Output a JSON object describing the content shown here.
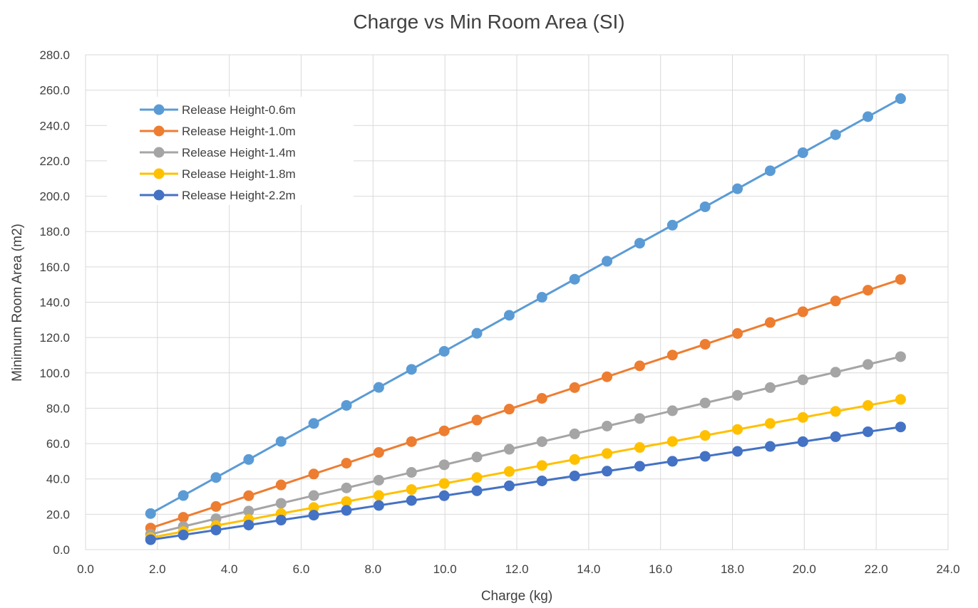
{
  "chart_data": {
    "type": "line",
    "title": "Charge vs Min Room Area  (SI)",
    "xlabel": "Charge (kg)",
    "ylabel": "Minimum Room Area (m2)",
    "xlim": [
      0,
      24
    ],
    "ylim": [
      0,
      280
    ],
    "x_ticks": [
      "0.0",
      "2.0",
      "4.0",
      "6.0",
      "8.0",
      "10.0",
      "12.0",
      "14.0",
      "16.0",
      "18.0",
      "20.0",
      "22.0",
      "24.0"
    ],
    "y_ticks": [
      "0.0",
      "20.0",
      "40.0",
      "60.0",
      "80.0",
      "100.0",
      "120.0",
      "140.0",
      "160.0",
      "180.0",
      "200.0",
      "220.0",
      "240.0",
      "260.0",
      "280.0"
    ],
    "grid": true,
    "legend_position": "top-left",
    "x": [
      1.81,
      2.72,
      3.63,
      4.54,
      5.44,
      6.35,
      7.26,
      8.16,
      9.07,
      9.98,
      10.89,
      11.79,
      12.7,
      13.61,
      14.51,
      15.42,
      16.33,
      17.24,
      18.14,
      19.05,
      19.96,
      20.87,
      21.77,
      22.68
    ],
    "series": [
      {
        "name": "Release Height-0.6m",
        "color": "#5B9BD5",
        "values": [
          20.4,
          30.6,
          40.8,
          51.0,
          61.2,
          71.4,
          81.6,
          91.8,
          102.0,
          112.2,
          122.4,
          132.6,
          142.8,
          153.0,
          163.2,
          173.4,
          183.6,
          194.0,
          204.2,
          214.4,
          224.6,
          234.8,
          245.0,
          255.2
        ]
      },
      {
        "name": "Release Height-1.0m",
        "color": "#ED7D31",
        "values": [
          12.2,
          18.3,
          24.4,
          30.5,
          36.6,
          42.8,
          48.9,
          55.0,
          61.1,
          67.2,
          73.3,
          79.5,
          85.6,
          91.7,
          97.8,
          104.0,
          110.1,
          116.2,
          122.3,
          128.5,
          134.6,
          140.7,
          146.8,
          152.9
        ]
      },
      {
        "name": "Release Height-1.4m",
        "color": "#A5A5A5",
        "values": [
          8.7,
          13.1,
          17.5,
          21.8,
          26.2,
          30.6,
          34.9,
          39.3,
          43.7,
          48.0,
          52.4,
          56.8,
          61.1,
          65.5,
          69.9,
          74.2,
          78.6,
          83.0,
          87.3,
          91.7,
          96.1,
          100.4,
          104.8,
          109.2
        ]
      },
      {
        "name": "Release Height-1.8m",
        "color": "#FFC000",
        "values": [
          6.8,
          10.2,
          13.6,
          17.0,
          20.4,
          23.8,
          27.2,
          30.6,
          34.0,
          37.4,
          40.8,
          44.2,
          47.6,
          51.0,
          54.4,
          57.8,
          61.2,
          64.6,
          68.0,
          71.4,
          74.8,
          78.2,
          81.6,
          85.0
        ]
      },
      {
        "name": "Release Height-2.2m",
        "color": "#4472C4",
        "values": [
          5.6,
          8.3,
          11.1,
          13.9,
          16.7,
          19.5,
          22.2,
          25.0,
          27.8,
          30.5,
          33.3,
          36.1,
          38.9,
          41.7,
          44.4,
          47.2,
          50.0,
          52.8,
          55.6,
          58.4,
          61.1,
          63.9,
          66.7,
          69.4
        ]
      }
    ]
  }
}
